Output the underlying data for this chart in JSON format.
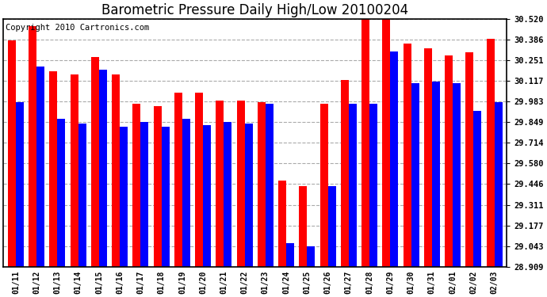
{
  "title": "Barometric Pressure Daily High/Low 20100204",
  "copyright": "Copyright 2010 Cartronics.com",
  "dates": [
    "01/11",
    "01/12",
    "01/13",
    "01/14",
    "01/15",
    "01/16",
    "01/17",
    "01/18",
    "01/19",
    "01/20",
    "01/21",
    "01/22",
    "01/23",
    "01/24",
    "01/25",
    "01/26",
    "01/27",
    "01/28",
    "01/29",
    "01/30",
    "01/31",
    "02/01",
    "02/02",
    "02/03"
  ],
  "highs": [
    30.38,
    30.47,
    30.18,
    30.16,
    30.27,
    30.16,
    29.97,
    29.95,
    30.04,
    30.04,
    29.99,
    29.99,
    29.98,
    29.47,
    29.43,
    29.97,
    30.12,
    30.55,
    30.57,
    30.36,
    30.33,
    30.28,
    30.3,
    30.39
  ],
  "lows": [
    29.98,
    30.21,
    29.87,
    29.84,
    30.19,
    29.82,
    29.85,
    29.82,
    29.87,
    29.83,
    29.85,
    29.84,
    29.97,
    29.06,
    29.04,
    29.43,
    29.97,
    29.97,
    30.31,
    30.1,
    30.11,
    30.1,
    29.92,
    29.98
  ],
  "ymin": 28.909,
  "ymax": 30.52,
  "yticks": [
    28.909,
    29.043,
    29.177,
    29.311,
    29.446,
    29.58,
    29.714,
    29.849,
    29.983,
    30.117,
    30.251,
    30.386,
    30.52
  ],
  "high_color": "#FF0000",
  "low_color": "#0000FF",
  "bg_color": "#FFFFFF",
  "grid_color": "#AAAAAA",
  "title_fontsize": 12,
  "copyright_fontsize": 7.5,
  "bar_width": 0.38
}
